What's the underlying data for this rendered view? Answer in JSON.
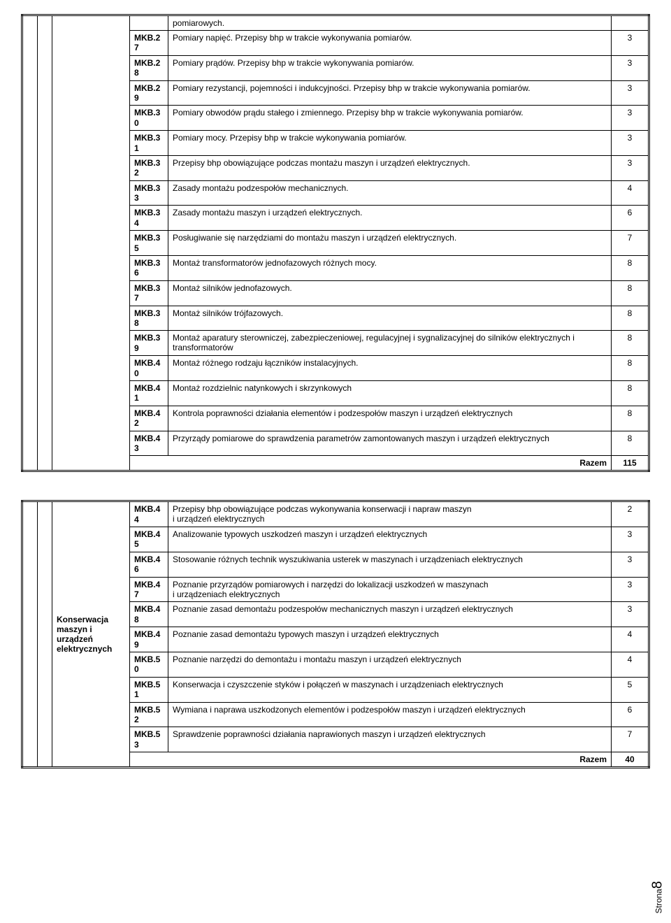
{
  "table1": {
    "continuation_first": "pomiarowych.",
    "rows": [
      {
        "code": "MKB.27",
        "desc": "Pomiary napięć. Przepisy bhp w trakcie wykonywania pomiarów.",
        "hrs": "3"
      },
      {
        "code": "MKB.28",
        "desc": "Pomiary prądów. Przepisy bhp w trakcie wykonywania pomiarów.",
        "hrs": "3"
      },
      {
        "code": "MKB.29",
        "desc": "Pomiary rezystancji, pojemności i indukcyjności. Przepisy bhp w trakcie wykonywania pomiarów.",
        "hrs": "3"
      },
      {
        "code": "MKB.30",
        "desc": "Pomiary obwodów prądu stałego i zmiennego. Przepisy bhp w trakcie wykonywania pomiarów.",
        "hrs": "3"
      },
      {
        "code": "MKB.31",
        "desc": "Pomiary mocy. Przepisy bhp w trakcie wykonywania pomiarów.",
        "hrs": "3"
      },
      {
        "code": "MKB.32",
        "desc": "Przepisy bhp obowiązujące podczas montażu maszyn i urządzeń elektrycznych.",
        "hrs": "3"
      },
      {
        "code": "MKB.33",
        "desc": "Zasady montażu podzespołów mechanicznych.",
        "hrs": "4"
      },
      {
        "code": "MKB.34",
        "desc": "Zasady montażu maszyn i urządzeń elektrycznych.",
        "hrs": "6"
      },
      {
        "code": "MKB.35",
        "desc": "Posługiwanie się narzędziami do montażu maszyn i urządzeń elektrycznych.",
        "hrs": "7"
      },
      {
        "code": "MKB.36",
        "desc": "Montaż transformatorów jednofazowych różnych mocy.",
        "hrs": "8"
      },
      {
        "code": "MKB.37",
        "desc": "Montaż silników jednofazowych.",
        "hrs": "8"
      },
      {
        "code": "MKB.38",
        "desc": "Montaż silników trójfazowych.",
        "hrs": "8"
      },
      {
        "code": "MKB.39",
        "desc": "Montaż aparatury sterowniczej, zabezpieczeniowej, regulacyjnej i sygnalizacyjnej do silników elektrycznych i transformatorów",
        "hrs": "8"
      },
      {
        "code": "MKB.40",
        "desc": "Montaż różnego rodzaju łączników instalacyjnych.",
        "hrs": "8"
      },
      {
        "code": "MKB.41",
        "desc": "Montaż rozdzielnic natynkowych i skrzynkowych",
        "hrs": "8"
      },
      {
        "code": "MKB.42",
        "desc": "Kontrola poprawności działania elementów i podzespołów maszyn i urządzeń elektrycznych",
        "hrs": "8"
      },
      {
        "code": "MKB.43",
        "desc": "Przyrządy pomiarowe do sprawdzenia parametrów zamontowanych maszyn i urządzeń elektrycznych",
        "hrs": "8"
      }
    ],
    "total_label": "Razem",
    "total": "115"
  },
  "table2": {
    "section_label": "Konserwacja maszyn i urządzeń elektrycznych",
    "rows": [
      {
        "code": "MKB.44",
        "desc": "Przepisy bhp obowiązujące podczas wykonywania konserwacji i napraw maszyn\ni urządzeń elektrycznych",
        "hrs": "2"
      },
      {
        "code": "MKB.45",
        "desc": "Analizowanie typowych uszkodzeń maszyn i urządzeń elektrycznych",
        "hrs": "3"
      },
      {
        "code": "MKB.46",
        "desc": "Stosowanie różnych technik wyszukiwania usterek w maszynach i urządzeniach elektrycznych",
        "hrs": "3"
      },
      {
        "code": "MKB.47",
        "desc": "Poznanie przyrządów pomiarowych i narzędzi do lokalizacji uszkodzeń w maszynach\ni urządzeniach elektrycznych",
        "hrs": "3"
      },
      {
        "code": "MKB.48",
        "desc": "Poznanie zasad demontażu podzespołów mechanicznych maszyn i urządzeń elektrycznych",
        "hrs": "3"
      },
      {
        "code": "MKB.49",
        "desc": "Poznanie zasad demontażu typowych maszyn i urządzeń elektrycznych",
        "hrs": "4"
      },
      {
        "code": "MKB.50",
        "desc": "Poznanie narzędzi do demontażu i montażu maszyn i urządzeń elektrycznych",
        "hrs": "4"
      },
      {
        "code": "MKB.51",
        "desc": "Konserwacja i czyszczenie styków i połączeń w maszynach i urządzeniach elektrycznych",
        "hrs": "5"
      },
      {
        "code": "MKB.52",
        "desc": "Wymiana i naprawa uszkodzonych elementów i podzespołów maszyn i urządzeń elektrycznych",
        "hrs": "6"
      },
      {
        "code": "MKB.53",
        "desc": "Sprawdzenie poprawności działania naprawionych maszyn i urządzeń elektrycznych",
        "hrs": "7"
      }
    ],
    "total_label": "Razem",
    "total": "40"
  },
  "page": {
    "label": "Strona",
    "num": "8"
  }
}
